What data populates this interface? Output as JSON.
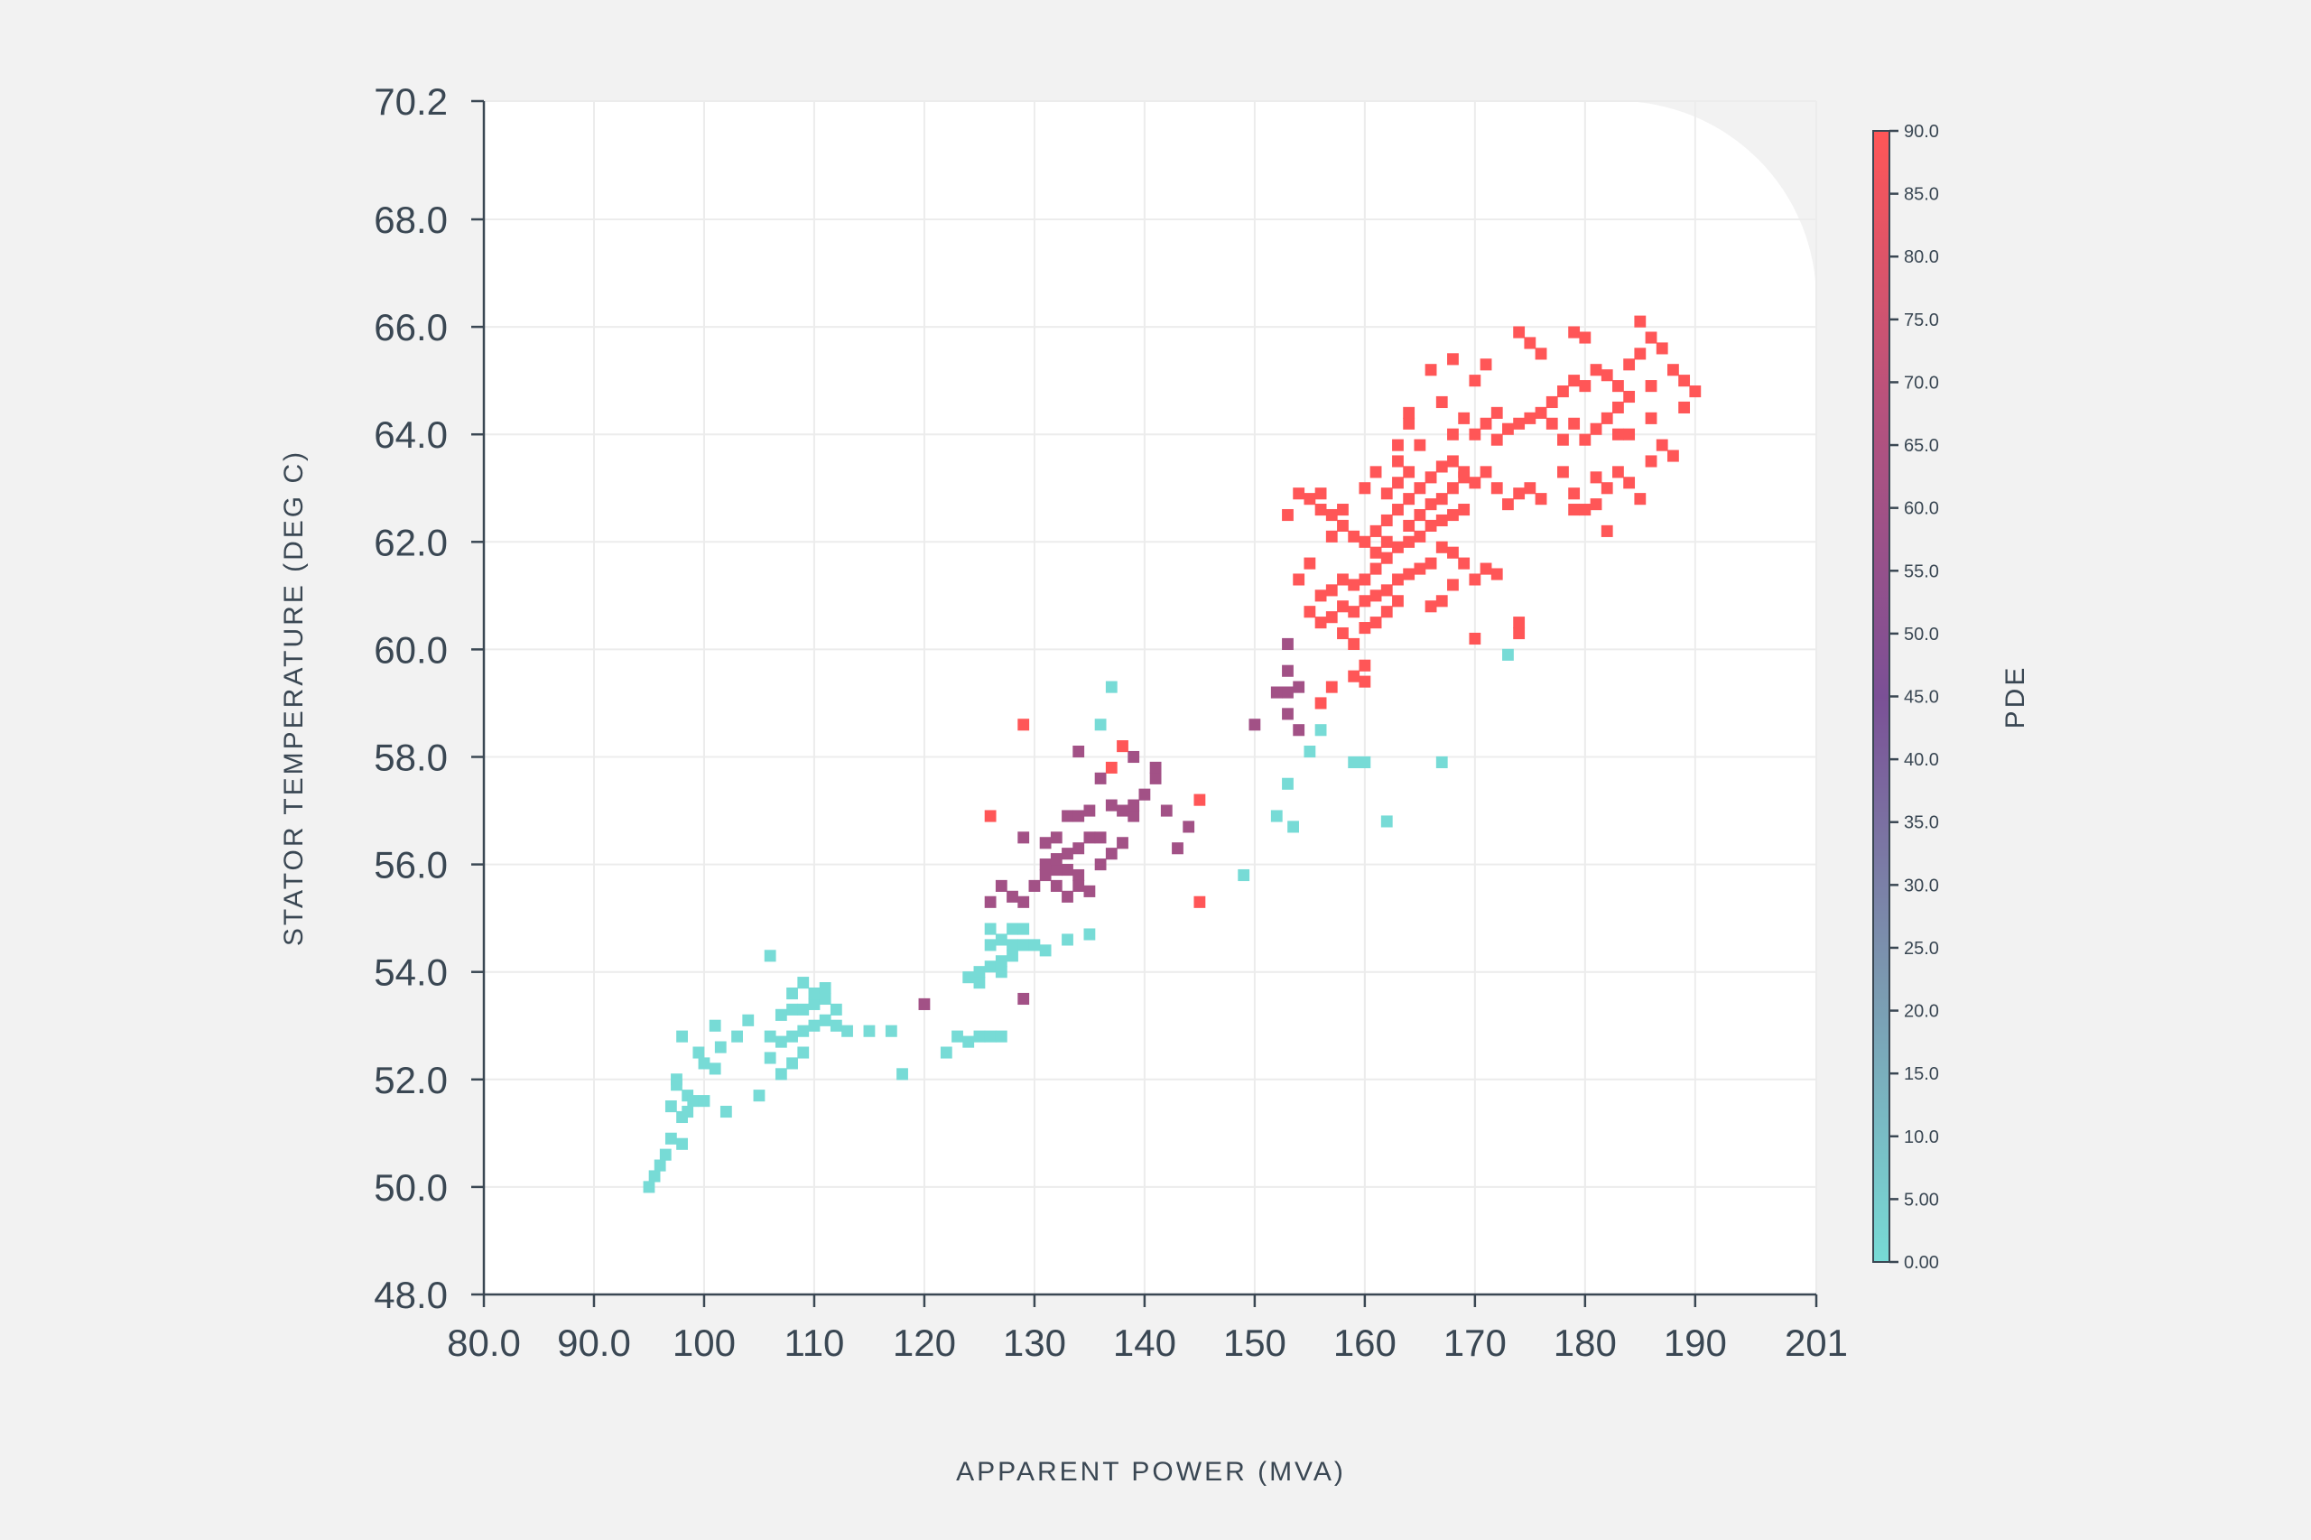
{
  "chart_data": {
    "type": "heatmap",
    "xlabel": "APPARENT POWER (MVA)",
    "ylabel": "STATOR TEMPERATURE (DEG C)",
    "colorbar_label": "PDE",
    "xlim": [
      80,
      201
    ],
    "ylim": [
      48,
      70.2
    ],
    "x_ticks": [
      80,
      90,
      100,
      110,
      120,
      130,
      140,
      150,
      160,
      170,
      180,
      190,
      201
    ],
    "x_tick_labels": [
      "80.0",
      "90.0",
      "100",
      "110",
      "120",
      "130",
      "140",
      "150",
      "160",
      "170",
      "180",
      "190",
      "201"
    ],
    "y_ticks": [
      48,
      50,
      52,
      54,
      56,
      58,
      60,
      62,
      64,
      66,
      68,
      70.2
    ],
    "y_tick_labels": [
      "48.0",
      "50.0",
      "52.0",
      "54.0",
      "56.0",
      "58.0",
      "60.0",
      "62.0",
      "64.0",
      "66.0",
      "68.0",
      "70.2"
    ],
    "colorbar_range": [
      0,
      90
    ],
    "colorbar_ticks": [
      0,
      5,
      10,
      15,
      20,
      25,
      30,
      35,
      40,
      45,
      50,
      55,
      60,
      65,
      70,
      75,
      80,
      85,
      90
    ],
    "colorbar_tick_labels": [
      "0.00",
      "5.00",
      "10.0",
      "15.0",
      "20.0",
      "25.0",
      "30.0",
      "35.0",
      "40.0",
      "45.0",
      "50.0",
      "55.0",
      "60.0",
      "65.0",
      "70.0",
      "75.0",
      "80.0",
      "85.0",
      "90.0"
    ],
    "colorscale": [
      "#77dbd6",
      "#7b98b0",
      "#7b5096",
      "#b5527e",
      "#ff5657"
    ],
    "grid": true,
    "cells": [
      [
        95,
        50.0,
        0
      ],
      [
        95.5,
        50.2,
        0
      ],
      [
        96,
        50.4,
        0
      ],
      [
        96.5,
        50.6,
        0
      ],
      [
        97,
        50.9,
        0
      ],
      [
        98,
        50.8,
        0
      ],
      [
        97,
        51.5,
        0
      ],
      [
        98,
        51.3,
        0
      ],
      [
        97.5,
        51.9,
        0
      ],
      [
        98.5,
        51.7,
        0
      ],
      [
        97.5,
        52.0,
        0
      ],
      [
        98.5,
        51.4,
        0
      ],
      [
        99,
        51.6,
        0
      ],
      [
        100,
        51.6,
        0
      ],
      [
        100,
        52.3,
        0
      ],
      [
        101,
        52.2,
        0
      ],
      [
        99.5,
        52.5,
        0
      ],
      [
        101.5,
        52.6,
        0
      ],
      [
        98,
        52.8,
        0
      ],
      [
        101,
        53.0,
        0
      ],
      [
        102,
        51.4,
        0
      ],
      [
        105,
        51.7,
        0
      ],
      [
        104,
        53.1,
        0
      ],
      [
        103,
        52.8,
        0
      ],
      [
        106,
        52.8,
        0
      ],
      [
        107,
        52.7,
        0
      ],
      [
        108,
        52.8,
        0
      ],
      [
        109,
        52.9,
        0
      ],
      [
        110,
        53.0,
        0
      ],
      [
        111,
        53.1,
        0
      ],
      [
        112,
        53.0,
        0
      ],
      [
        107,
        53.2,
        0
      ],
      [
        108,
        53.3,
        0
      ],
      [
        109,
        53.3,
        0
      ],
      [
        110,
        53.4,
        0
      ],
      [
        111,
        53.5,
        0
      ],
      [
        112,
        53.3,
        0
      ],
      [
        113,
        52.9,
        0
      ],
      [
        108,
        53.6,
        0
      ],
      [
        110,
        53.6,
        0
      ],
      [
        111,
        53.7,
        0
      ],
      [
        109,
        53.8,
        0
      ],
      [
        106,
        52.4,
        0
      ],
      [
        108,
        52.3,
        0
      ],
      [
        107,
        52.1,
        0
      ],
      [
        109,
        52.5,
        0
      ],
      [
        106,
        54.3,
        0
      ],
      [
        115,
        52.9,
        0
      ],
      [
        117,
        52.9,
        0
      ],
      [
        118,
        52.1,
        0
      ],
      [
        122,
        52.5,
        0
      ],
      [
        123,
        52.8,
        0
      ],
      [
        124,
        52.7,
        0
      ],
      [
        125,
        52.8,
        0
      ],
      [
        126,
        52.8,
        0
      ],
      [
        127,
        52.8,
        0
      ],
      [
        124,
        53.9,
        0
      ],
      [
        125,
        54.0,
        0
      ],
      [
        126,
        54.1,
        0
      ],
      [
        127,
        54.2,
        0
      ],
      [
        128,
        54.3,
        0
      ],
      [
        126,
        54.5,
        0
      ],
      [
        127,
        54.6,
        0
      ],
      [
        128,
        54.5,
        0
      ],
      [
        129,
        54.5,
        0
      ],
      [
        130,
        54.5,
        0
      ],
      [
        131,
        54.4,
        0
      ],
      [
        126,
        54.8,
        0
      ],
      [
        128,
        54.8,
        0
      ],
      [
        129,
        54.8,
        0
      ],
      [
        127,
        54.0,
        0
      ],
      [
        125,
        53.8,
        0
      ],
      [
        133,
        54.6,
        0
      ],
      [
        135,
        54.7,
        0
      ],
      [
        137,
        59.3,
        0
      ],
      [
        136,
        58.6,
        0
      ],
      [
        149,
        55.8,
        0
      ],
      [
        152,
        56.9,
        0
      ],
      [
        153,
        57.5,
        0
      ],
      [
        153.5,
        56.7,
        0
      ],
      [
        155,
        58.1,
        0
      ],
      [
        156,
        58.5,
        0
      ],
      [
        159,
        57.9,
        0
      ],
      [
        160,
        57.9,
        0
      ],
      [
        162,
        56.8,
        0
      ],
      [
        167,
        57.9,
        0
      ],
      [
        173,
        59.9,
        0
      ],
      [
        120,
        53.4,
        60
      ],
      [
        129,
        53.5,
        60
      ],
      [
        126,
        55.3,
        60
      ],
      [
        127,
        55.6,
        60
      ],
      [
        128,
        55.4,
        60
      ],
      [
        129,
        55.3,
        60
      ],
      [
        130,
        55.6,
        60
      ],
      [
        131,
        55.8,
        60
      ],
      [
        132,
        55.9,
        60
      ],
      [
        133,
        55.9,
        60
      ],
      [
        134,
        55.8,
        60
      ],
      [
        132,
        55.6,
        60
      ],
      [
        133,
        55.4,
        60
      ],
      [
        134,
        55.6,
        60
      ],
      [
        135,
        55.5,
        60
      ],
      [
        131,
        56.0,
        60
      ],
      [
        132,
        56.1,
        60
      ],
      [
        133,
        56.2,
        60
      ],
      [
        131,
        56.4,
        60
      ],
      [
        132,
        56.5,
        60
      ],
      [
        134,
        56.3,
        60
      ],
      [
        135,
        56.5,
        60
      ],
      [
        136,
        56.5,
        60
      ],
      [
        137,
        56.2,
        60
      ],
      [
        138,
        56.4,
        60
      ],
      [
        136,
        56.0,
        60
      ],
      [
        134,
        56.9,
        60
      ],
      [
        135,
        57.0,
        60
      ],
      [
        137,
        57.1,
        60
      ],
      [
        138,
        57.0,
        60
      ],
      [
        139,
        56.9,
        60
      ],
      [
        141,
        57.6,
        60
      ],
      [
        141,
        57.8,
        60
      ],
      [
        140,
        57.3,
        60
      ],
      [
        134,
        58.1,
        60
      ],
      [
        139,
        58.0,
        60
      ],
      [
        136,
        57.6,
        60
      ],
      [
        133,
        56.9,
        60
      ],
      [
        129,
        56.5,
        60
      ],
      [
        143,
        56.3,
        60
      ],
      [
        144,
        56.7,
        60
      ],
      [
        142,
        57.0,
        60
      ],
      [
        152,
        59.2,
        60
      ],
      [
        153,
        59.2,
        60
      ],
      [
        154,
        59.3,
        60
      ],
      [
        153,
        59.6,
        60
      ],
      [
        153,
        60.1,
        60
      ],
      [
        150,
        58.6,
        60
      ],
      [
        153,
        58.8,
        60
      ],
      [
        154,
        58.5,
        60
      ],
      [
        139,
        57.1,
        60
      ],
      [
        129,
        58.6,
        90
      ],
      [
        126,
        56.9,
        90
      ],
      [
        137,
        57.8,
        90
      ],
      [
        138,
        58.2,
        90
      ],
      [
        145,
        57.2,
        90
      ],
      [
        145,
        55.3,
        90
      ],
      [
        156,
        59.0,
        90
      ],
      [
        157,
        59.3,
        90
      ],
      [
        157,
        60.6,
        90
      ],
      [
        158,
        60.8,
        90
      ],
      [
        159,
        60.7,
        90
      ],
      [
        160,
        60.9,
        90
      ],
      [
        161,
        61.0,
        90
      ],
      [
        162,
        61.1,
        90
      ],
      [
        163,
        61.3,
        90
      ],
      [
        164,
        61.4,
        90
      ],
      [
        165,
        61.5,
        90
      ],
      [
        166,
        61.6,
        90
      ],
      [
        159,
        61.2,
        90
      ],
      [
        160,
        61.3,
        90
      ],
      [
        161,
        61.5,
        90
      ],
      [
        162,
        61.7,
        90
      ],
      [
        163,
        61.9,
        90
      ],
      [
        164,
        62.0,
        90
      ],
      [
        165,
        62.1,
        90
      ],
      [
        166,
        62.3,
        90
      ],
      [
        167,
        62.4,
        90
      ],
      [
        168,
        62.5,
        90
      ],
      [
        169,
        62.6,
        90
      ],
      [
        158,
        60.3,
        90
      ],
      [
        159,
        60.1,
        90
      ],
      [
        160,
        60.4,
        90
      ],
      [
        161,
        60.5,
        90
      ],
      [
        162,
        60.7,
        90
      ],
      [
        163,
        60.9,
        90
      ],
      [
        160,
        59.7,
        90
      ],
      [
        159,
        59.5,
        90
      ],
      [
        160,
        59.4,
        90
      ],
      [
        156,
        60.5,
        90
      ],
      [
        155,
        60.7,
        90
      ],
      [
        164,
        62.3,
        90
      ],
      [
        165,
        62.5,
        90
      ],
      [
        166,
        62.7,
        90
      ],
      [
        167,
        62.8,
        90
      ],
      [
        168,
        63.0,
        90
      ],
      [
        169,
        63.2,
        90
      ],
      [
        170,
        63.1,
        90
      ],
      [
        166,
        63.2,
        90
      ],
      [
        167,
        63.4,
        90
      ],
      [
        168,
        63.5,
        90
      ],
      [
        169,
        63.3,
        90
      ],
      [
        165,
        63.0,
        90
      ],
      [
        164,
        62.8,
        90
      ],
      [
        163,
        62.6,
        90
      ],
      [
        162,
        62.4,
        90
      ],
      [
        161,
        62.2,
        90
      ],
      [
        160,
        62.0,
        90
      ],
      [
        159,
        62.1,
        90
      ],
      [
        158,
        62.3,
        90
      ],
      [
        157,
        62.5,
        90
      ],
      [
        156,
        62.6,
        90
      ],
      [
        155,
        62.8,
        90
      ],
      [
        154,
        62.9,
        90
      ],
      [
        153,
        62.5,
        90
      ],
      [
        162,
        62.9,
        90
      ],
      [
        163,
        63.1,
        90
      ],
      [
        164,
        63.3,
        90
      ],
      [
        167,
        61.9,
        90
      ],
      [
        168,
        61.8,
        90
      ],
      [
        169,
        61.6,
        90
      ],
      [
        170,
        61.3,
        90
      ],
      [
        171,
        61.5,
        90
      ],
      [
        172,
        61.4,
        90
      ],
      [
        168,
        61.2,
        90
      ],
      [
        167,
        60.9,
        90
      ],
      [
        166,
        60.8,
        90
      ],
      [
        170,
        60.2,
        90
      ],
      [
        174,
        60.3,
        90
      ],
      [
        174,
        60.5,
        90
      ],
      [
        173,
        62.7,
        90
      ],
      [
        174,
        62.9,
        90
      ],
      [
        175,
        63.0,
        90
      ],
      [
        176,
        62.8,
        90
      ],
      [
        172,
        63.0,
        90
      ],
      [
        171,
        63.3,
        90
      ],
      [
        172,
        63.9,
        90
      ],
      [
        173,
        64.1,
        90
      ],
      [
        174,
        64.2,
        90
      ],
      [
        175,
        64.3,
        90
      ],
      [
        176,
        64.4,
        90
      ],
      [
        177,
        64.2,
        90
      ],
      [
        170,
        64.0,
        90
      ],
      [
        171,
        64.2,
        90
      ],
      [
        172,
        64.4,
        90
      ],
      [
        165,
        63.8,
        90
      ],
      [
        167,
        64.6,
        90
      ],
      [
        168,
        64.0,
        90
      ],
      [
        169,
        64.3,
        90
      ],
      [
        164,
        64.2,
        90
      ],
      [
        170,
        65.0,
        90
      ],
      [
        171,
        65.3,
        90
      ],
      [
        174,
        65.9,
        90
      ],
      [
        175,
        65.7,
        90
      ],
      [
        176,
        65.5,
        90
      ],
      [
        179,
        65.9,
        90
      ],
      [
        180,
        65.8,
        90
      ],
      [
        181,
        65.2,
        90
      ],
      [
        182,
        65.1,
        90
      ],
      [
        183,
        64.9,
        90
      ],
      [
        184,
        65.3,
        90
      ],
      [
        185,
        65.5,
        90
      ],
      [
        186,
        65.8,
        90
      ],
      [
        185,
        66.1,
        90
      ],
      [
        187,
        65.6,
        90
      ],
      [
        188,
        65.2,
        90
      ],
      [
        189,
        65.0,
        90
      ],
      [
        190,
        64.8,
        90
      ],
      [
        186,
        64.9,
        90
      ],
      [
        184,
        64.7,
        90
      ],
      [
        183,
        64.5,
        90
      ],
      [
        182,
        64.3,
        90
      ],
      [
        181,
        64.1,
        90
      ],
      [
        180,
        63.9,
        90
      ],
      [
        179,
        64.2,
        90
      ],
      [
        178,
        63.9,
        90
      ],
      [
        177,
        64.6,
        90
      ],
      [
        178,
        64.8,
        90
      ],
      [
        179,
        65.0,
        90
      ],
      [
        180,
        64.9,
        90
      ],
      [
        181,
        63.2,
        90
      ],
      [
        182,
        63.0,
        90
      ],
      [
        183,
        63.3,
        90
      ],
      [
        184,
        63.1,
        90
      ],
      [
        185,
        62.8,
        90
      ],
      [
        186,
        63.5,
        90
      ],
      [
        187,
        63.8,
        90
      ],
      [
        188,
        63.6,
        90
      ],
      [
        189,
        64.5,
        90
      ],
      [
        179,
        62.6,
        90
      ],
      [
        180,
        62.6,
        90
      ],
      [
        181,
        62.7,
        90
      ],
      [
        182,
        62.2,
        90
      ],
      [
        178,
        63.3,
        90
      ],
      [
        179,
        62.9,
        90
      ],
      [
        183,
        64.0,
        90
      ],
      [
        184,
        64.0,
        90
      ],
      [
        186,
        64.3,
        90
      ],
      [
        154,
        61.3,
        90
      ],
      [
        155,
        61.6,
        90
      ],
      [
        156,
        61.0,
        90
      ],
      [
        157,
        61.1,
        90
      ],
      [
        158,
        61.3,
        90
      ],
      [
        161,
        61.8,
        90
      ],
      [
        162,
        62.0,
        90
      ],
      [
        158,
        62.6,
        90
      ],
      [
        160,
        63.0,
        90
      ],
      [
        161,
        63.3,
        90
      ],
      [
        163,
        63.8,
        90
      ],
      [
        164,
        64.4,
        90
      ],
      [
        166,
        65.2,
        90
      ],
      [
        168,
        65.4,
        90
      ],
      [
        163,
        63.5,
        90
      ],
      [
        157,
        62.1,
        90
      ],
      [
        156,
        62.9,
        90
      ]
    ]
  }
}
